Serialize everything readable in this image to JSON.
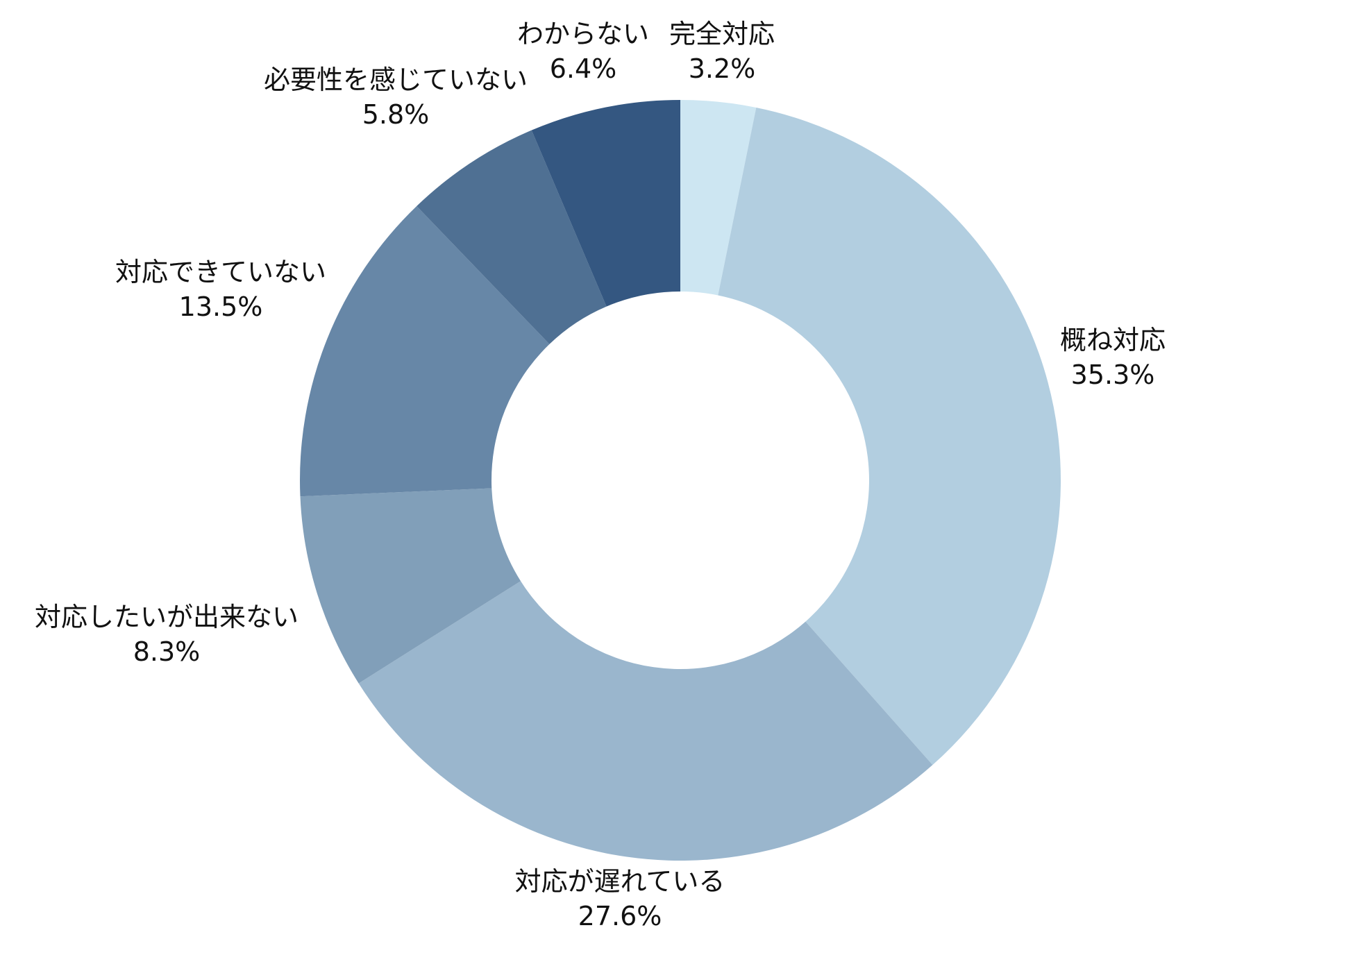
{
  "chart_data": {
    "type": "pie",
    "variant": "donut",
    "start_angle_deg": 0,
    "direction": "clockwise",
    "legend": "none",
    "title": "",
    "slices": [
      {
        "label": "完全対応",
        "value": 3.2,
        "value_label": "3.2%",
        "color": "#cde6f2"
      },
      {
        "label": "概ね対応",
        "value": 35.3,
        "value_label": "35.3%",
        "color": "#b2cee0"
      },
      {
        "label": "対応が遅れている",
        "value": 27.6,
        "value_label": "27.6%",
        "color": "#9ab6cd"
      },
      {
        "label": "対応したいが出来ない",
        "value": 8.3,
        "value_label": "8.3%",
        "color": "#819fb9"
      },
      {
        "label": "対応できていない",
        "value": 13.5,
        "value_label": "13.5%",
        "color": "#6787a7"
      },
      {
        "label": "必要性を感じていない",
        "value": 5.8,
        "value_label": "5.8%",
        "color": "#4f7093"
      },
      {
        "label": "わからない",
        "value": 6.4,
        "value_label": "6.4%",
        "color": "#345781"
      }
    ]
  }
}
